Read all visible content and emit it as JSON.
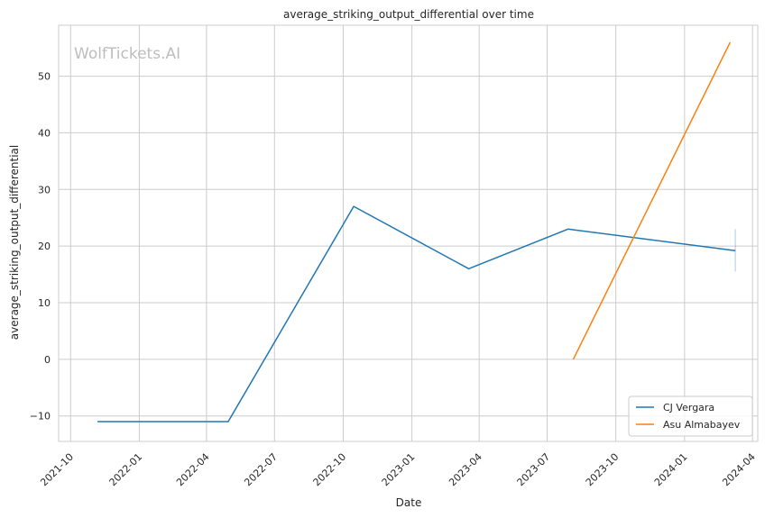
{
  "chart_data": {
    "type": "line",
    "title": "average_striking_output_differential over time",
    "xlabel": "Date",
    "ylabel": "average_striking_output_differential",
    "watermark": "WolfTickets.AI",
    "x_range": [
      "2021-09-15",
      "2024-04-08"
    ],
    "ylim": [
      -14.5,
      59
    ],
    "grid": true,
    "legend_position": "lower-right",
    "x_ticks": [
      "2021-10-01",
      "2022-01-01",
      "2022-04-01",
      "2022-07-01",
      "2022-10-01",
      "2023-01-01",
      "2023-04-01",
      "2023-07-01",
      "2023-10-01",
      "2024-01-01",
      "2024-04-01"
    ],
    "x_tick_labels": [
      "2021-10",
      "2022-01",
      "2022-04",
      "2022-07",
      "2022-10",
      "2023-01",
      "2023-04",
      "2023-07",
      "2023-10",
      "2024-01",
      "2024-04"
    ],
    "y_ticks": [
      -10,
      0,
      10,
      20,
      30,
      40,
      50
    ],
    "y_tick_labels": [
      "−10",
      "0",
      "10",
      "20",
      "30",
      "40",
      "50"
    ],
    "series": [
      {
        "name": "CJ Vergara",
        "color": "#1f77b4",
        "points": [
          {
            "x": "2021-11-06",
            "y": -11
          },
          {
            "x": "2022-04-30",
            "y": -11
          },
          {
            "x": "2022-10-15",
            "y": 27
          },
          {
            "x": "2023-03-18",
            "y": 16
          },
          {
            "x": "2023-07-29",
            "y": 23
          },
          {
            "x": "2024-03-09",
            "y": 19.2
          }
        ],
        "error_band": {
          "x": "2024-03-09",
          "low": 15.5,
          "high": 23
        }
      },
      {
        "name": "Asu Almabayev",
        "color": "#ff7f0e",
        "points": [
          {
            "x": "2023-08-05",
            "y": 0
          },
          {
            "x": "2024-03-02",
            "y": 56
          }
        ]
      }
    ]
  }
}
